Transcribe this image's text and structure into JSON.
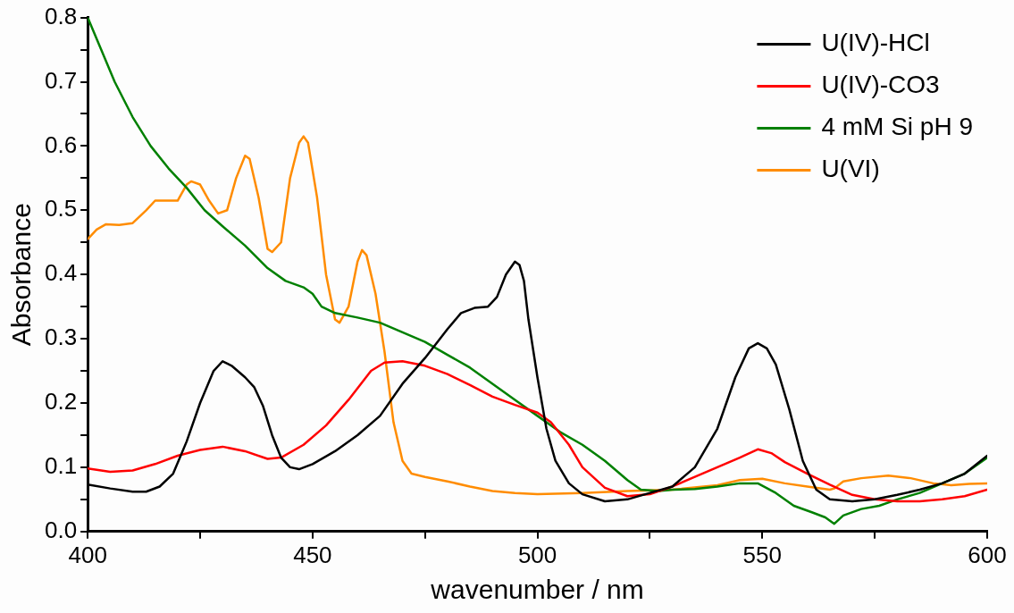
{
  "chart_data": {
    "type": "line",
    "xlabel": "wavenumber / nm",
    "ylabel": "Absorbance",
    "xlim": [
      400,
      600
    ],
    "ylim": [
      0,
      0.8
    ],
    "xticks": [
      400,
      {
        "value": 425,
        "label": null
      },
      450,
      {
        "value": 475,
        "label": null
      },
      500,
      {
        "value": 525,
        "label": null
      },
      550,
      {
        "value": 575,
        "label": null
      },
      600
    ],
    "yticks": [
      {
        "value": 0,
        "label": "0.0"
      },
      {
        "value": 0.05,
        "label": null
      },
      0.1,
      {
        "value": 0.15,
        "label": null
      },
      0.2,
      {
        "value": 0.25,
        "label": null
      },
      0.3,
      {
        "value": 0.35,
        "label": null
      },
      0.4,
      {
        "value": 0.45,
        "label": null
      },
      0.5,
      {
        "value": 0.55,
        "label": null
      },
      0.6,
      {
        "value": 0.65,
        "label": null
      },
      0.7,
      {
        "value": 0.75,
        "label": null
      },
      0.8
    ],
    "grid": false,
    "legend": "top right",
    "marker": "none",
    "line_style": "solid",
    "series": [
      {
        "name": "U(IV)-HCl",
        "color": "#000000",
        "x": [
          400,
          405,
          410,
          413,
          416,
          419,
          422,
          425,
          428,
          430,
          432,
          435,
          437,
          439,
          441,
          443,
          445,
          447,
          450,
          455,
          460,
          465,
          470,
          475,
          480,
          483,
          486,
          489,
          491,
          493,
          495,
          496,
          497,
          498,
          500,
          502,
          504,
          507,
          510,
          515,
          520,
          525,
          530,
          535,
          540,
          544,
          547,
          549,
          551,
          553,
          556,
          559,
          562,
          565,
          570,
          575,
          580,
          585,
          590,
          595,
          600
        ],
        "values": [
          0.073,
          0.067,
          0.062,
          0.062,
          0.07,
          0.09,
          0.14,
          0.2,
          0.25,
          0.265,
          0.258,
          0.24,
          0.225,
          0.195,
          0.15,
          0.115,
          0.1,
          0.097,
          0.105,
          0.125,
          0.15,
          0.18,
          0.23,
          0.27,
          0.315,
          0.34,
          0.348,
          0.35,
          0.365,
          0.4,
          0.42,
          0.415,
          0.39,
          0.33,
          0.24,
          0.16,
          0.11,
          0.075,
          0.058,
          0.047,
          0.05,
          0.06,
          0.07,
          0.1,
          0.16,
          0.24,
          0.285,
          0.293,
          0.285,
          0.26,
          0.19,
          0.11,
          0.065,
          0.05,
          0.047,
          0.05,
          0.057,
          0.065,
          0.075,
          0.09,
          0.118
        ]
      },
      {
        "name": "U(IV)-CO3",
        "color": "#ff0000",
        "x": [
          400,
          405,
          410,
          415,
          420,
          425,
          430,
          435,
          440,
          443,
          448,
          453,
          458,
          463,
          466,
          470,
          475,
          480,
          485,
          490,
          495,
          500,
          503,
          507,
          510,
          515,
          520,
          525,
          530,
          535,
          540,
          545,
          549,
          552,
          555,
          560,
          565,
          570,
          575,
          580,
          585,
          590,
          595,
          600
        ],
        "values": [
          0.098,
          0.093,
          0.095,
          0.105,
          0.118,
          0.127,
          0.132,
          0.125,
          0.113,
          0.115,
          0.135,
          0.165,
          0.205,
          0.25,
          0.263,
          0.265,
          0.258,
          0.245,
          0.228,
          0.21,
          0.197,
          0.185,
          0.17,
          0.135,
          0.1,
          0.068,
          0.055,
          0.058,
          0.07,
          0.085,
          0.1,
          0.115,
          0.128,
          0.122,
          0.108,
          0.09,
          0.073,
          0.057,
          0.05,
          0.047,
          0.047,
          0.05,
          0.055,
          0.065
        ]
      },
      {
        "name": "4 mM Si pH 9",
        "color": "#008000",
        "x": [
          400,
          403,
          406,
          410,
          414,
          418,
          422,
          426,
          430,
          435,
          440,
          444,
          448,
          450,
          452,
          455,
          460,
          465,
          470,
          475,
          480,
          485,
          490,
          495,
          500,
          505,
          510,
          515,
          520,
          523,
          527,
          530,
          535,
          540,
          545,
          549,
          553,
          557,
          561,
          564,
          566,
          568,
          572,
          576,
          580,
          585,
          590,
          595,
          600
        ],
        "values": [
          0.8,
          0.75,
          0.7,
          0.645,
          0.6,
          0.565,
          0.535,
          0.5,
          0.475,
          0.445,
          0.41,
          0.39,
          0.38,
          0.37,
          0.35,
          0.34,
          0.333,
          0.325,
          0.31,
          0.295,
          0.275,
          0.255,
          0.23,
          0.205,
          0.18,
          0.155,
          0.135,
          0.11,
          0.08,
          0.065,
          0.063,
          0.065,
          0.066,
          0.07,
          0.075,
          0.075,
          0.06,
          0.04,
          0.03,
          0.022,
          0.012,
          0.025,
          0.035,
          0.04,
          0.05,
          0.06,
          0.075,
          0.09,
          0.115
        ]
      },
      {
        "name": "U(VI)",
        "color": "#ff8c00",
        "x": [
          400,
          402,
          404,
          407,
          410,
          413,
          415,
          417,
          420,
          422,
          423,
          425,
          427,
          429,
          431,
          433,
          435,
          436,
          438,
          440,
          441,
          443,
          445,
          447,
          448,
          449,
          451,
          453,
          455,
          456,
          458,
          460,
          461,
          462,
          464,
          466,
          468,
          470,
          472,
          475,
          480,
          485,
          490,
          495,
          500,
          510,
          520,
          530,
          540,
          545,
          550,
          555,
          560,
          565,
          566,
          568,
          572,
          578,
          583,
          588,
          592,
          596,
          600
        ],
        "values": [
          0.455,
          0.47,
          0.478,
          0.477,
          0.48,
          0.5,
          0.515,
          0.515,
          0.515,
          0.54,
          0.545,
          0.54,
          0.515,
          0.495,
          0.5,
          0.55,
          0.585,
          0.58,
          0.52,
          0.44,
          0.435,
          0.45,
          0.55,
          0.605,
          0.615,
          0.605,
          0.52,
          0.4,
          0.33,
          0.325,
          0.35,
          0.42,
          0.438,
          0.43,
          0.37,
          0.28,
          0.17,
          0.11,
          0.09,
          0.085,
          0.078,
          0.07,
          0.063,
          0.06,
          0.058,
          0.06,
          0.063,
          0.065,
          0.072,
          0.08,
          0.082,
          0.075,
          0.07,
          0.065,
          0.067,
          0.078,
          0.083,
          0.087,
          0.083,
          0.075,
          0.072,
          0.074,
          0.075
        ]
      }
    ]
  }
}
